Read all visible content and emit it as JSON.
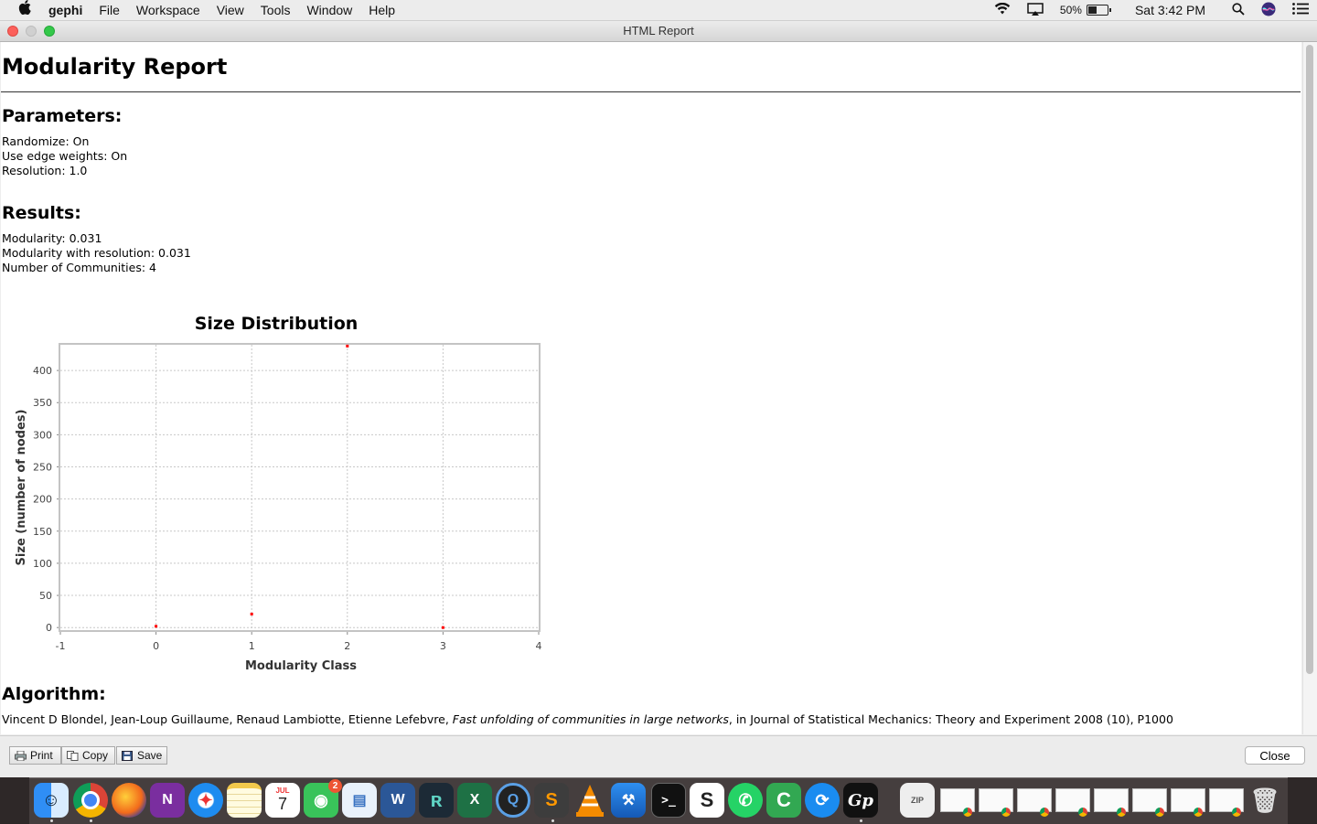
{
  "menubar": {
    "app": "gephi",
    "items": [
      "File",
      "Workspace",
      "View",
      "Tools",
      "Window",
      "Help"
    ],
    "battery": "50%",
    "battery_level": 0.5,
    "clock": "Sat 3:42 PM"
  },
  "window": {
    "title": "HTML Report"
  },
  "report": {
    "title": "Modularity Report",
    "params_heading": "Parameters:",
    "params": [
      "Randomize: On",
      "Use edge weights: On",
      "Resolution: 1.0"
    ],
    "results_heading": "Results:",
    "results": [
      "Modularity: 0.031",
      "Modularity with resolution: 0.031",
      "Number of Communities: 4"
    ],
    "algorithm_heading": "Algorithm:",
    "citation": {
      "authors": "Vincent D Blondel, Jean-Loup Guillaume, Renaud Lambiotte, Etienne Lefebvre, ",
      "title": "Fast unfolding of communities in large networks",
      "venue": ", in Journal of Statistical Mechanics: Theory and Experiment 2008 (10), P1000"
    }
  },
  "chart_data": {
    "type": "scatter",
    "title": "Size Distribution",
    "xlabel": "Modularity Class",
    "ylabel": "Size (number of nodes)",
    "x": [
      0,
      1,
      2,
      3
    ],
    "y": [
      2,
      21,
      438,
      0
    ],
    "xlim": [
      -1,
      4
    ],
    "ylim": [
      -4,
      440
    ],
    "xticks": [
      -1,
      0,
      1,
      2,
      3,
      4
    ],
    "yticks": [
      0,
      50,
      100,
      150,
      200,
      250,
      300,
      350,
      400
    ],
    "grid": true,
    "point_color": "#ff0000"
  },
  "buttons": {
    "print": "Print",
    "copy": "Copy",
    "save": "Save",
    "close": "Close"
  },
  "dock": {
    "apps": [
      "Finder",
      "Chrome",
      "Firefox",
      "OneNote",
      "Safari",
      "Notes",
      "Calendar",
      "Messages",
      "Preview",
      "Word",
      "App",
      "Excel",
      "QuickTime",
      "Sublime Text",
      "VLC",
      "Xcode",
      "Terminal",
      "Scrivener",
      "WhatsApp",
      "Camtasia",
      "Share",
      "Gephi"
    ],
    "calendar_month": "JUL",
    "calendar_day": "7",
    "messages_badge": "2"
  }
}
